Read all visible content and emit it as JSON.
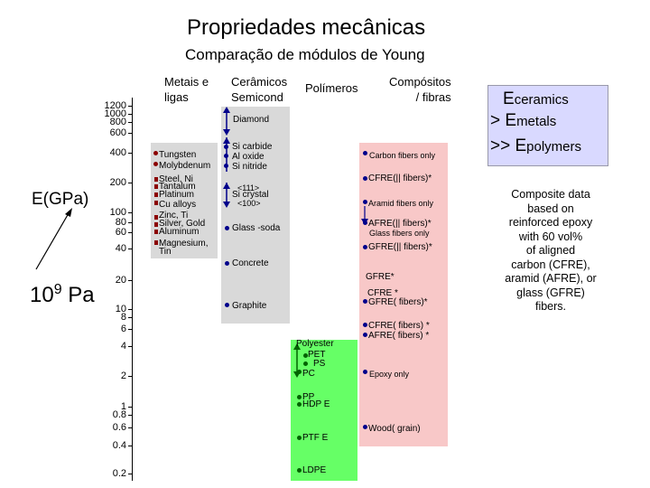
{
  "title": "Propriedades mecânicas",
  "subtitle": "Comparação de módulos de Young",
  "axis": {
    "label": "E(GPa)",
    "base_label": "10",
    "exponent": "9",
    "unit": "Pa",
    "ticks": [
      "1200",
      "1000",
      "800",
      "600",
      "400",
      "200",
      "100",
      "80",
      "60",
      "40",
      "20",
      "10",
      "8",
      "6",
      "4",
      "2",
      "1",
      "0.8",
      "0.6",
      "0.4",
      "0.2"
    ]
  },
  "columns": {
    "metals": "Metais e ligas",
    "ceramics_line1": "Cerâmicos",
    "ceramics_line2": "Semicond",
    "polymers": "Polímeros",
    "composites_line1": "Compósitos",
    "composites_line2": "/ fibras"
  },
  "metals": [
    "Tungsten",
    "Molybdenum",
    "Steel, Ni",
    "Tantalum",
    "Platinum",
    "Cu alloys",
    "Zinc, Ti",
    "Silver, Gold",
    "Aluminum",
    "Magnesium,",
    "Tin"
  ],
  "ceramics": {
    "diamond": "Diamond",
    "si_carbide": "Si carbide",
    "al_oxide": "Al oxide",
    "si_nitride": "Si nitride",
    "si_crystal_dir1": "<111>",
    "si_crystal": "Si crystal",
    "si_crystal_dir2": "<100>",
    "glass": "Glass -soda",
    "concrete": "Concrete",
    "graphite": "Graphite"
  },
  "polymers": [
    "Polyester",
    "PET",
    "PS",
    "PC",
    "PP",
    "HDP E",
    "PTF E",
    "LDPE"
  ],
  "composites": {
    "carbon_fibers": "Carbon fibers only",
    "cfre_parallel": "CFRE(|| fibers)*",
    "aramid_fibers": "Aramid fibers only",
    "afre_parallel": "AFRE(|| fibers)*",
    "glass_fibers": "Glass fibers only",
    "gfre_parallel": "GFRE(|| fibers)*",
    "gfre_star": "GFRE*",
    "cfre_star": "CFRE *",
    "gfre_perp": "GFRE( fibers)*",
    "cfre_perp": "CFRE( fibers) *",
    "afre_perp": "AFRE( fibers) *",
    "epoxy": "Epoxy only",
    "wood": "Wood( grain)"
  },
  "inequality": {
    "line1": "E",
    "line1_sub": "ceramics",
    "line2_op": "> E",
    "line2_sub": "metals",
    "line3_op": ">> E",
    "line3_sub": "polymers"
  },
  "note": [
    "Composite data",
    "based on",
    "reinforced epoxy",
    "with 60 vol%",
    "of aligned",
    "carbon (CFRE),",
    "aramid (AFRE), or",
    "glass (GFRE)",
    "fibers."
  ],
  "colors": {
    "metals_bg": "#d9d9d9",
    "ceramics_bg": "#d9d9d9",
    "polymers_bg": "#66ff66",
    "composites_bg": "#f8c8c8",
    "box_bg": "#d9d9ff",
    "markers": "#00008b"
  }
}
